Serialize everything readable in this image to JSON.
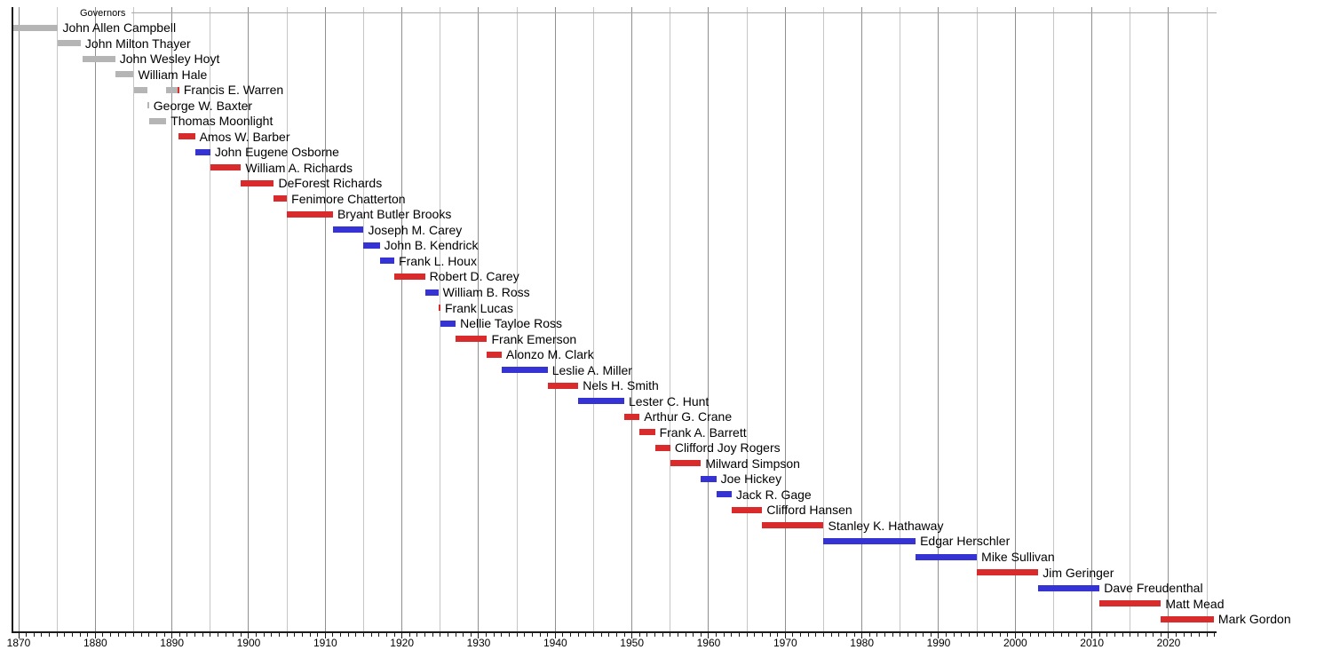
{
  "chart_data": {
    "type": "bar",
    "subtype": "gantt-timeline",
    "title": "Governors",
    "xlabel": "",
    "ylabel": "",
    "xlim": [
      1869.0,
      2026.4
    ],
    "grid": "vertical gridlines every 5 years; decade lines darker",
    "legend": "none",
    "x_tick_minor_interval": 1,
    "x_tick_labels": [
      "1870",
      "1880",
      "1890",
      "1900",
      "1910",
      "1920",
      "1930",
      "1940",
      "1950",
      "1960",
      "1970",
      "1980",
      "1990",
      "2000",
      "2010",
      "2020"
    ],
    "colors": {
      "territorial": "#b5b5b5",
      "republican": "#d92b2b",
      "democratic": "#3633d4",
      "grid_minor": "#c6c6c6",
      "grid_major": "#8f8f8f",
      "axis": "#1a1a1a",
      "text": "#000000",
      "section_line": "#a9a9a9"
    },
    "series": [
      {
        "name": "John Allen Campbell",
        "segments": [
          {
            "start": 1869.25,
            "end": 1875.15,
            "party": "territorial"
          }
        ]
      },
      {
        "name": "John Milton Thayer",
        "segments": [
          {
            "start": 1875.15,
            "end": 1878.1,
            "party": "territorial"
          }
        ]
      },
      {
        "name": "John Wesley Hoyt",
        "segments": [
          {
            "start": 1878.3,
            "end": 1882.6,
            "party": "territorial"
          }
        ]
      },
      {
        "name": "William Hale",
        "segments": [
          {
            "start": 1882.6,
            "end": 1885.0,
            "party": "territorial"
          }
        ]
      },
      {
        "name": "Francis E. Warren",
        "segments": [
          {
            "start": 1885.1,
            "end": 1886.85,
            "party": "territorial"
          },
          {
            "start": 1889.25,
            "end": 1890.75,
            "party": "territorial"
          },
          {
            "start": 1890.78,
            "end": 1890.95,
            "party": "republican"
          }
        ]
      },
      {
        "name": "George W. Baxter",
        "segments": [
          {
            "start": 1886.85,
            "end": 1887.0,
            "party": "territorial"
          }
        ]
      },
      {
        "name": "Thomas Moonlight",
        "segments": [
          {
            "start": 1887.0,
            "end": 1889.25,
            "party": "territorial"
          }
        ]
      },
      {
        "name": "Amos W. Barber",
        "segments": [
          {
            "start": 1890.9,
            "end": 1893.0,
            "party": "republican"
          }
        ]
      },
      {
        "name": "John Eugene Osborne",
        "segments": [
          {
            "start": 1893.0,
            "end": 1895.0,
            "party": "democratic"
          }
        ]
      },
      {
        "name": "William A. Richards",
        "segments": [
          {
            "start": 1895.0,
            "end": 1899.0,
            "party": "republican"
          }
        ]
      },
      {
        "name": "DeForest Richards",
        "segments": [
          {
            "start": 1899.0,
            "end": 1903.3,
            "party": "republican"
          }
        ]
      },
      {
        "name": "Fenimore Chatterton",
        "segments": [
          {
            "start": 1903.3,
            "end": 1905.0,
            "party": "republican"
          }
        ]
      },
      {
        "name": "Bryant Butler Brooks",
        "segments": [
          {
            "start": 1905.0,
            "end": 1911.0,
            "party": "republican"
          }
        ]
      },
      {
        "name": "Joseph M. Carey",
        "segments": [
          {
            "start": 1911.0,
            "end": 1915.0,
            "party": "democratic"
          }
        ]
      },
      {
        "name": "John B. Kendrick",
        "segments": [
          {
            "start": 1915.0,
            "end": 1917.1,
            "party": "democratic"
          }
        ]
      },
      {
        "name": "Frank L. Houx",
        "segments": [
          {
            "start": 1917.1,
            "end": 1919.0,
            "party": "democratic"
          }
        ]
      },
      {
        "name": "Robert D. Carey",
        "segments": [
          {
            "start": 1919.0,
            "end": 1923.0,
            "party": "republican"
          }
        ]
      },
      {
        "name": "William B. Ross",
        "segments": [
          {
            "start": 1923.0,
            "end": 1924.75,
            "party": "democratic"
          }
        ]
      },
      {
        "name": "Frank Lucas",
        "segments": [
          {
            "start": 1924.75,
            "end": 1925.02,
            "party": "republican"
          }
        ]
      },
      {
        "name": "Nellie Tayloe Ross",
        "segments": [
          {
            "start": 1925.02,
            "end": 1927.0,
            "party": "democratic"
          }
        ]
      },
      {
        "name": "Frank Emerson",
        "segments": [
          {
            "start": 1927.0,
            "end": 1931.1,
            "party": "republican"
          }
        ]
      },
      {
        "name": "Alonzo M. Clark",
        "segments": [
          {
            "start": 1931.1,
            "end": 1933.0,
            "party": "republican"
          }
        ]
      },
      {
        "name": "Leslie A. Miller",
        "segments": [
          {
            "start": 1933.0,
            "end": 1939.0,
            "party": "democratic"
          }
        ]
      },
      {
        "name": "Nels H. Smith",
        "segments": [
          {
            "start": 1939.0,
            "end": 1943.0,
            "party": "republican"
          }
        ]
      },
      {
        "name": "Lester C. Hunt",
        "segments": [
          {
            "start": 1943.0,
            "end": 1949.0,
            "party": "democratic"
          }
        ]
      },
      {
        "name": "Arthur G. Crane",
        "segments": [
          {
            "start": 1949.0,
            "end": 1951.0,
            "party": "republican"
          }
        ]
      },
      {
        "name": "Frank A. Barrett",
        "segments": [
          {
            "start": 1951.0,
            "end": 1953.0,
            "party": "republican"
          }
        ]
      },
      {
        "name": "Clifford Joy Rogers",
        "segments": [
          {
            "start": 1953.0,
            "end": 1955.0,
            "party": "republican"
          }
        ]
      },
      {
        "name": "Milward Simpson",
        "segments": [
          {
            "start": 1955.0,
            "end": 1959.0,
            "party": "republican"
          }
        ]
      },
      {
        "name": "Joe Hickey",
        "segments": [
          {
            "start": 1959.0,
            "end": 1961.0,
            "party": "democratic"
          }
        ]
      },
      {
        "name": "Jack R. Gage",
        "segments": [
          {
            "start": 1961.0,
            "end": 1963.0,
            "party": "democratic"
          }
        ]
      },
      {
        "name": "Clifford Hansen",
        "segments": [
          {
            "start": 1963.0,
            "end": 1967.0,
            "party": "republican"
          }
        ]
      },
      {
        "name": "Stanley K. Hathaway",
        "segments": [
          {
            "start": 1967.0,
            "end": 1975.0,
            "party": "republican"
          }
        ]
      },
      {
        "name": "Edgar Herschler",
        "segments": [
          {
            "start": 1975.0,
            "end": 1987.0,
            "party": "democratic"
          }
        ]
      },
      {
        "name": "Mike Sullivan",
        "segments": [
          {
            "start": 1987.0,
            "end": 1995.0,
            "party": "democratic"
          }
        ]
      },
      {
        "name": "Jim Geringer",
        "segments": [
          {
            "start": 1995.0,
            "end": 2003.0,
            "party": "republican"
          }
        ]
      },
      {
        "name": "Dave Freudenthal",
        "segments": [
          {
            "start": 2003.0,
            "end": 2011.0,
            "party": "democratic"
          }
        ]
      },
      {
        "name": "Matt Mead",
        "segments": [
          {
            "start": 2011.0,
            "end": 2019.0,
            "party": "republican"
          }
        ]
      },
      {
        "name": "Mark Gordon",
        "segments": [
          {
            "start": 2019.0,
            "end": 2025.9,
            "party": "republican"
          }
        ]
      }
    ]
  }
}
